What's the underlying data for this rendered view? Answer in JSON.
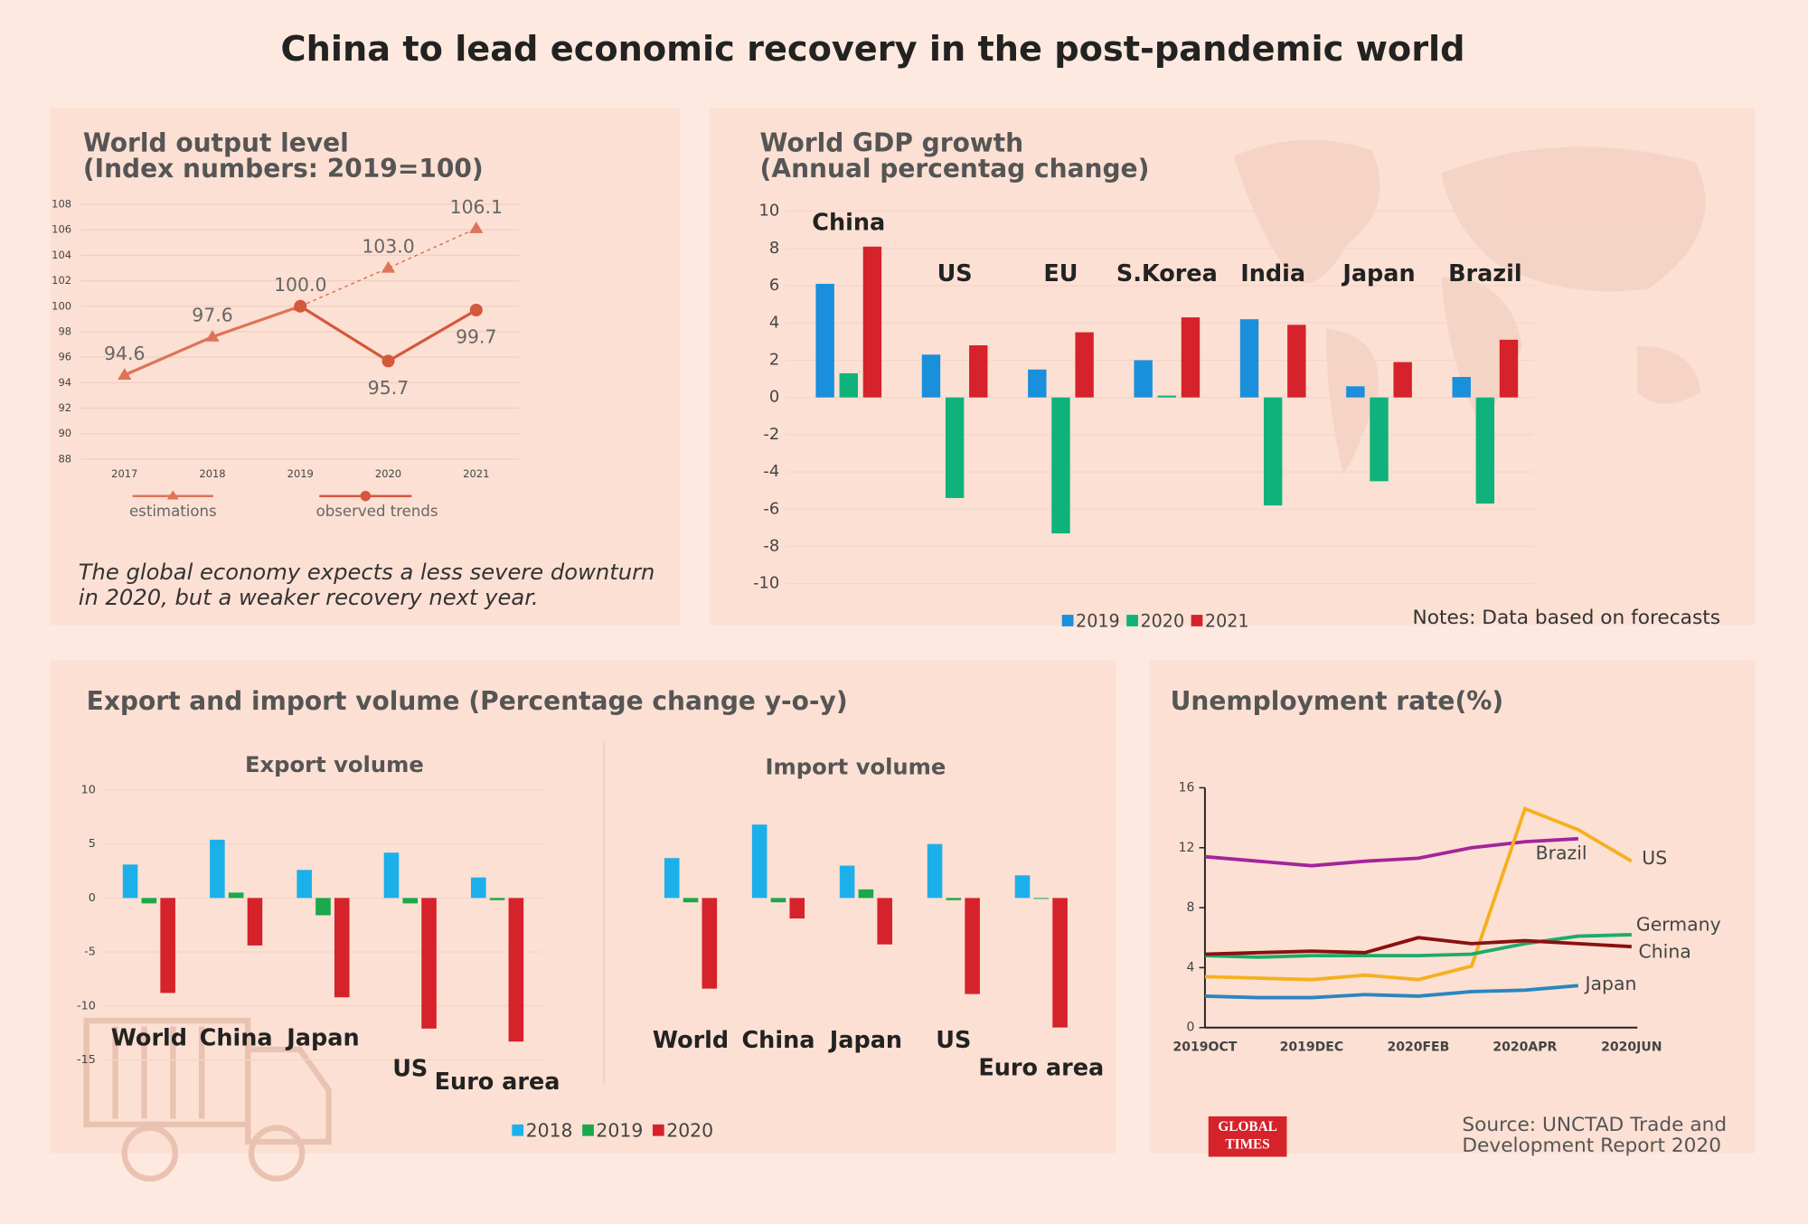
{
  "title": "China to lead economic recovery in the post-pandemic world",
  "source": [
    "Source: UNCTAD Trade and",
    "Development Report 2020"
  ],
  "logo": [
    "GLOBAL",
    "TIMES"
  ],
  "chart_data": [
    {
      "type": "line",
      "title": "World output level",
      "subtitle": "(Index numbers: 2019=100)",
      "categories": [
        "2017",
        "2018",
        "2019",
        "2020",
        "2021"
      ],
      "series": [
        {
          "name": "estimations",
          "color": "#df7358",
          "values": [
            94.6,
            97.6,
            100.0,
            103.0,
            106.1
          ],
          "value_labels": [
            "94.6",
            "97.6",
            "100.0",
            "103.0",
            "106.1"
          ]
        },
        {
          "name": "observed trends",
          "color": "#d4583e",
          "values": [
            null,
            null,
            100.0,
            95.7,
            99.7
          ],
          "value_labels": [
            null,
            null,
            null,
            "95.7",
            "99.7"
          ]
        }
      ],
      "ylim": [
        88,
        108
      ],
      "yticks": [
        88,
        90,
        92,
        94,
        96,
        98,
        100,
        102,
        104,
        106,
        108
      ],
      "grid": true,
      "annotations": [
        "The global economy expects a less severe downturn",
        "in 2020, but a weaker recovery next year."
      ]
    },
    {
      "type": "bar",
      "title": "World GDP growth",
      "subtitle": "(Annual percentag change)",
      "categories": [
        "China",
        "US",
        "EU",
        "S.Korea",
        "India",
        "Japan",
        "Brazil"
      ],
      "series": [
        {
          "name": "2019",
          "color": "#1a8fdc",
          "values": [
            6.1,
            2.3,
            1.5,
            2.0,
            4.2,
            0.6,
            1.1
          ]
        },
        {
          "name": "2020",
          "color": "#0fb27a",
          "values": [
            1.3,
            -5.4,
            -7.3,
            0.1,
            -5.8,
            -4.5,
            -5.7
          ]
        },
        {
          "name": "2021",
          "color": "#d6222b",
          "values": [
            8.1,
            2.8,
            3.5,
            4.3,
            3.9,
            1.9,
            3.1
          ]
        }
      ],
      "ylim": [
        -10,
        10
      ],
      "yticks": [
        -10,
        -8,
        -6,
        -4,
        -2,
        0,
        2,
        4,
        6,
        8,
        10
      ],
      "grid": true,
      "annotations": [
        "Notes: Data based on forecasts"
      ]
    },
    {
      "type": "bar",
      "title": "Export and import volume (Percentage change y-o-y)",
      "subtitle": "Export volume",
      "categories": [
        "World",
        "China",
        "Japan",
        "US",
        "Euro area"
      ],
      "series": [
        {
          "name": "2018",
          "color": "#1cb0ea",
          "values": [
            3.1,
            5.4,
            2.6,
            4.2,
            1.9
          ]
        },
        {
          "name": "2019",
          "color": "#19a84a",
          "values": [
            -0.5,
            0.5,
            -1.6,
            -0.5,
            -0.2
          ]
        },
        {
          "name": "2020",
          "color": "#d6222b",
          "values": [
            -8.8,
            -4.4,
            -9.2,
            -12.1,
            -13.3
          ]
        }
      ],
      "ylim": [
        -15,
        10
      ],
      "yticks": [
        -15,
        -10,
        -5,
        0,
        5,
        10
      ],
      "grid": true
    },
    {
      "type": "bar",
      "subtitle": "Import volume",
      "categories": [
        "World",
        "China",
        "Japan",
        "US",
        "Euro area"
      ],
      "series": [
        {
          "color": "#1cb0ea",
          "values": [
            3.7,
            6.8,
            3.0,
            5.0,
            2.1
          ]
        },
        {
          "color": "#19a84a",
          "values": [
            -0.4,
            -0.4,
            0.8,
            -0.2,
            0
          ]
        },
        {
          "color": "#d6222b",
          "values": [
            -8.4,
            -1.9,
            -4.3,
            -8.9,
            -12.0
          ]
        }
      ],
      "ylim": [
        -15,
        10
      ],
      "grid": false
    },
    {
      "type": "line",
      "title": "Unemployment rate(%)",
      "categories": [
        "2019OCT",
        null,
        "2019DEC",
        null,
        "2020FEB",
        null,
        "2020APR",
        null,
        "2020JUN"
      ],
      "series": [
        {
          "name": "Brazil",
          "color": "#a3259a",
          "values": [
            11.4,
            11.1,
            10.8,
            11.1,
            11.3,
            12.0,
            12.4,
            12.6,
            null
          ]
        },
        {
          "name": "US",
          "color": "#f5b020",
          "values": [
            3.4,
            3.3,
            3.2,
            3.5,
            3.2,
            4.1,
            14.6,
            13.2,
            11.1
          ]
        },
        {
          "name": "Germany",
          "color": "#1dab6c",
          "values": [
            4.8,
            4.7,
            4.8,
            4.8,
            4.8,
            4.9,
            5.6,
            6.1,
            6.2
          ]
        },
        {
          "name": "China",
          "color": "#8b1010",
          "values": [
            4.9,
            5.0,
            5.1,
            5.0,
            6.0,
            5.6,
            5.8,
            5.6,
            5.4
          ]
        },
        {
          "name": "Japan",
          "color": "#2a86c0",
          "values": [
            2.1,
            2.0,
            2.0,
            2.2,
            2.1,
            2.4,
            2.5,
            2.8,
            null
          ]
        }
      ],
      "ylim": [
        0,
        16
      ],
      "yticks": [
        0,
        4,
        8,
        12,
        16
      ],
      "grid": false
    }
  ]
}
